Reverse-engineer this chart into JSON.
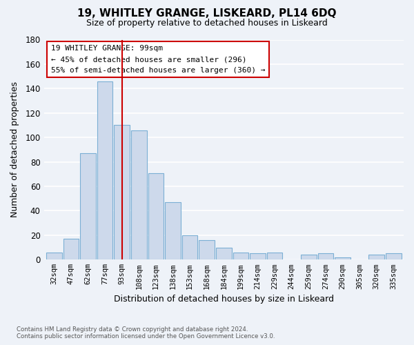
{
  "title": "19, WHITLEY GRANGE, LISKEARD, PL14 6DQ",
  "subtitle": "Size of property relative to detached houses in Liskeard",
  "xlabel": "Distribution of detached houses by size in Liskeard",
  "ylabel": "Number of detached properties",
  "bar_labels": [
    "32sqm",
    "47sqm",
    "62sqm",
    "77sqm",
    "93sqm",
    "108sqm",
    "123sqm",
    "138sqm",
    "153sqm",
    "168sqm",
    "184sqm",
    "199sqm",
    "214sqm",
    "229sqm",
    "244sqm",
    "259sqm",
    "274sqm",
    "290sqm",
    "305sqm",
    "320sqm",
    "335sqm"
  ],
  "bar_values": [
    6,
    17,
    87,
    146,
    110,
    106,
    71,
    47,
    20,
    16,
    10,
    6,
    5,
    6,
    0,
    4,
    5,
    2,
    0,
    4,
    5
  ],
  "bar_color": "#cdd9eb",
  "bar_edge_color": "#7bafd4",
  "vline_idx": 4.5,
  "vline_color": "#cc0000",
  "annotation_title": "19 WHITLEY GRANGE: 99sqm",
  "annotation_line1": "← 45% of detached houses are smaller (296)",
  "annotation_line2": "55% of semi-detached houses are larger (360) →",
  "annotation_box_color": "#ffffff",
  "annotation_box_edge": "#cc0000",
  "ylim": [
    0,
    180
  ],
  "yticks": [
    0,
    20,
    40,
    60,
    80,
    100,
    120,
    140,
    160,
    180
  ],
  "footnote_line1": "Contains HM Land Registry data © Crown copyright and database right 2024.",
  "footnote_line2": "Contains public sector information licensed under the Open Government Licence v3.0.",
  "background_color": "#eef2f8",
  "grid_color": "#ffffff"
}
